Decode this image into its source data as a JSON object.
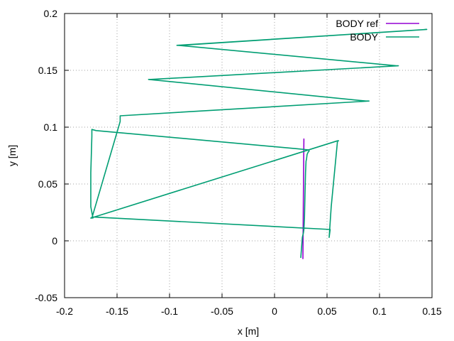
{
  "chart_data": {
    "type": "line",
    "xlabel": "x [m]",
    "ylabel": "y [m]",
    "xlim": [
      -0.2,
      0.15
    ],
    "ylim": [
      -0.05,
      0.2
    ],
    "xticks": [
      -0.2,
      -0.15,
      -0.1,
      -0.05,
      0,
      0.05,
      0.1,
      0.15
    ],
    "yticks": [
      -0.05,
      0,
      0.05,
      0.1,
      0.15,
      0.2
    ],
    "xtick_labels": [
      "-0.2",
      "-0.15",
      "-0.1",
      "-0.05",
      "0",
      "0.05",
      "0.1",
      "0.15"
    ],
    "ytick_labels": [
      "-0.05",
      "0",
      "0.05",
      "0.1",
      "0.15",
      "0.2"
    ],
    "grid": true,
    "legend_position": "top-right",
    "series": [
      {
        "name": "BODY ref",
        "color": "#9400d3",
        "x": [
          0.027,
          0.0275,
          0.028
        ],
        "y": [
          -0.016,
          0.04,
          0.09
        ]
      },
      {
        "name": "BODY",
        "color": "#009e73",
        "x": [
          0.025,
          0.0265,
          0.0275,
          0.028,
          0.0285,
          0.029,
          0.0295,
          0.03,
          0.0305,
          0.031,
          0.032,
          0.033,
          0.033,
          0.0325,
          0.022,
          -0.17,
          -0.174,
          -0.174,
          -0.175,
          -0.175,
          -0.175,
          -0.174,
          -0.173,
          -0.173,
          -0.175,
          0.06,
          0.061,
          0.06,
          0.054,
          0.052,
          0.053,
          -0.173,
          -0.174,
          -0.147,
          -0.147,
          0.09,
          0.087,
          -0.12,
          -0.118,
          0.118,
          0.116,
          -0.092,
          -0.09,
          0.145,
          -0.093,
          -0.092
        ],
        "y": [
          -0.015,
          0.003,
          0.007,
          0.01,
          0.02,
          0.04,
          0.06,
          0.07,
          0.072,
          0.076,
          0.078,
          0.079,
          0.079,
          0.08,
          0.081,
          0.097,
          0.098,
          0.092,
          0.06,
          0.04,
          0.03,
          0.025,
          0.02,
          0.021,
          0.02,
          0.088,
          0.088,
          0.088,
          0.03,
          0.003,
          0.01,
          0.021,
          0.02,
          0.105,
          0.11,
          0.123,
          0.123,
          0.142,
          0.142,
          0.154,
          0.154,
          0.172,
          0.172,
          0.186,
          0.172,
          0.172
        ]
      }
    ]
  }
}
